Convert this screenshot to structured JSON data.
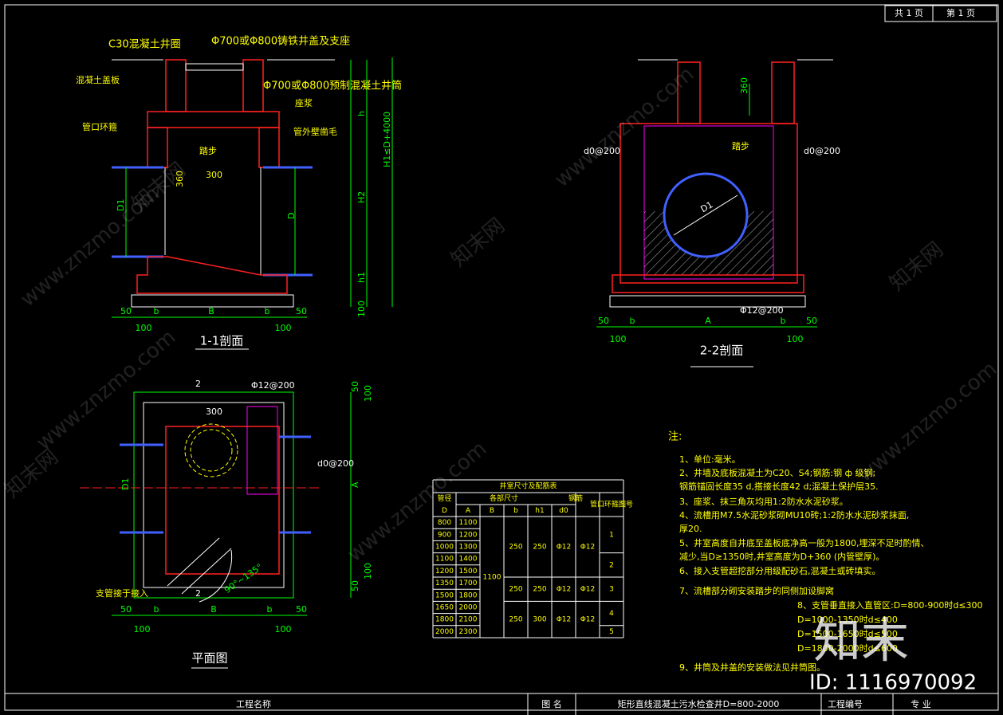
{
  "title_block": {
    "total": "共 1 页",
    "sheet": "第 1 页"
  },
  "section_1_1": {
    "label": "1-1剖面",
    "annotations": [
      "C30混凝土井圈",
      "Φ700或Φ800铸铁井盖及支座",
      "混凝土盖板",
      "Φ700或Φ800预制混凝土井筒",
      "座浆",
      "管口环箍",
      "管外壁凿毛",
      "踏步",
      "300",
      "360",
      "D1",
      "D",
      "H2",
      "H1≤D+4000",
      "h",
      "h1",
      "100"
    ],
    "dims": [
      "50",
      "b",
      "B",
      "b",
      "50"
    ],
    "dims2": [
      "100",
      "100"
    ]
  },
  "section_2_2": {
    "label": "2-2剖面",
    "annotations": [
      "360",
      "踏步",
      "d0@200",
      "d0@200",
      "D1",
      "Φ12@200"
    ],
    "dims": [
      "50",
      "b",
      "A",
      "b",
      "50"
    ],
    "dims2": [
      "100",
      "100"
    ]
  },
  "plan": {
    "label": "平面图",
    "annotations": [
      "2",
      "2",
      "Φ12@200",
      "300",
      "d0@200",
      "支管接于接入",
      "90°~135°",
      "D1",
      "A",
      "50",
      "100",
      "100",
      "50"
    ],
    "dims": [
      "50",
      "b",
      "B",
      "b",
      "50"
    ],
    "dims2": [
      "100",
      "100"
    ]
  },
  "table": {
    "title": "井室尺寸及配筋表",
    "headers": [
      "管径",
      "各部尺寸",
      "钢筋",
      "管口环箍图号"
    ],
    "subheaders": [
      "D",
      "A",
      "B",
      "b",
      "h1",
      "d0"
    ],
    "D": [
      "800",
      "900",
      "1000",
      "1100",
      "1200",
      "1350",
      "1500",
      "1650",
      "1800",
      "2000"
    ],
    "A": [
      "1100",
      "1200",
      "1300",
      "1400",
      "1500",
      "1700",
      "1800",
      "2000",
      "2100",
      "2300"
    ],
    "B": "1100",
    "groups": [
      {
        "b": "250",
        "h1": "250",
        "d0": "Φ12",
        "ring": "Φ12"
      },
      {
        "b": "250",
        "h1": "250",
        "d0": "Φ12",
        "ring": "Φ12"
      },
      {
        "b": "250",
        "h1": "300",
        "d0": "Φ12",
        "ring": "Φ12"
      }
    ],
    "figures": [
      "1",
      "2",
      "3",
      "4",
      "5"
    ]
  },
  "notes": {
    "title": "注:",
    "lines": [
      "1、单位:毫米。",
      "2、井墙及底板混凝土为C20、S4;钢筋:钢 ф 级钢;",
      "   钢筋锚固长度35 d,搭接长度42 d;混凝土保护层35.",
      "3、座浆、抹三角灰均用1:2防水水泥砂浆。",
      "4、流槽用M7.5水泥砂浆砌MU10砖;1:2防水水泥砂浆抹面,",
      "   厚20.",
      "5、井室高度自井底至盖板底净高一般为1800,埋深不足时酌情、",
      "   减少,当D≥1350时,井室高度为D+360 (内管壁厚)。",
      "6、接入支管超挖部分用级配砂石,混凝土或砖填实。",
      "7、流槽部分砌安装踏步的同侧加设脚窝",
      "8、支管垂直接入直管区:D=800-900时d≤300",
      "D=1000-1350时d≤400",
      "D=1500-1650时d≤500",
      "D=1800-2000时d≤600",
      "9、井筒及井盖的安装做法见井筒图。"
    ]
  },
  "footer": {
    "project_label": "工程名称",
    "drawing_label": "图  名",
    "drawing_title": "矩形直线混凝土污水检查井D=800-2000",
    "number_label": "工程编号",
    "discipline_label": "专  业"
  },
  "watermark": {
    "site": "www.znzmo.com",
    "brand": "知末网",
    "logo": "知末",
    "id": "ID: 1116970092"
  }
}
